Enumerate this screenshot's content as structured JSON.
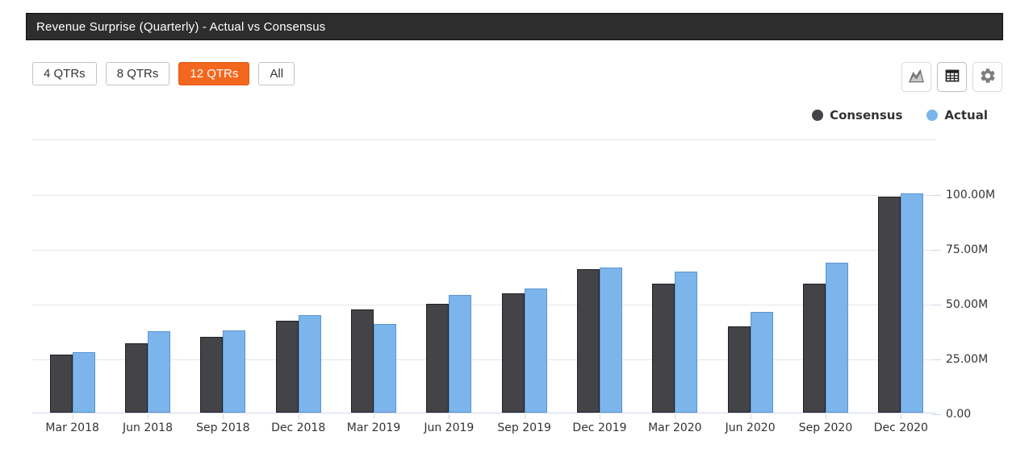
{
  "header": {
    "title": "Revenue Surprise (Quarterly) - Actual vs Consensus"
  },
  "toolbar": {
    "range_buttons": [
      {
        "label": "4 QTRs",
        "active": false
      },
      {
        "label": "8 QTRs",
        "active": false
      },
      {
        "label": "12 QTRs",
        "active": true
      },
      {
        "label": "All",
        "active": false
      }
    ],
    "icon_buttons": [
      {
        "name": "area-chart-icon"
      },
      {
        "name": "table-view-icon"
      },
      {
        "name": "settings-gear-icon"
      }
    ],
    "active_color": "#f4671f"
  },
  "legend": [
    {
      "label": "Consensus",
      "color": "#434348"
    },
    {
      "label": "Actual",
      "color": "#7cb5ec"
    }
  ],
  "chart_data": {
    "type": "bar",
    "title": "Revenue Surprise (Quarterly) - Actual vs Consensus",
    "categories": [
      "Mar 2018",
      "Jun 2018",
      "Sep 2018",
      "Dec 2018",
      "Mar 2019",
      "Jun 2019",
      "Sep 2019",
      "Dec 2019",
      "Mar 2020",
      "Jun 2020",
      "Sep 2020",
      "Dec 2020"
    ],
    "series": [
      {
        "name": "Consensus",
        "color": "#434348",
        "values": [
          26.5,
          31.5,
          34.5,
          42,
          47,
          49.5,
          54.5,
          65.5,
          59,
          39.5,
          59,
          98.5
        ]
      },
      {
        "name": "Actual",
        "color": "#7cb5ec",
        "values": [
          27.5,
          37,
          37.5,
          44.5,
          40.5,
          53.5,
          56.5,
          66,
          64.5,
          46,
          68.5,
          100
        ]
      }
    ],
    "value_unit": "millions",
    "xlabel": "",
    "ylabel": "",
    "ylim": [
      0,
      125
    ],
    "ytick_values": [
      0,
      25,
      50,
      75,
      100
    ],
    "ytick_labels": [
      "0.00",
      "25.00M",
      "50.00M",
      "75.00M",
      "100.00M"
    ],
    "grid": true,
    "legend_position": "top-right",
    "gridline_color": "#e6e6e6",
    "axis_color": "#ccd6eb"
  }
}
